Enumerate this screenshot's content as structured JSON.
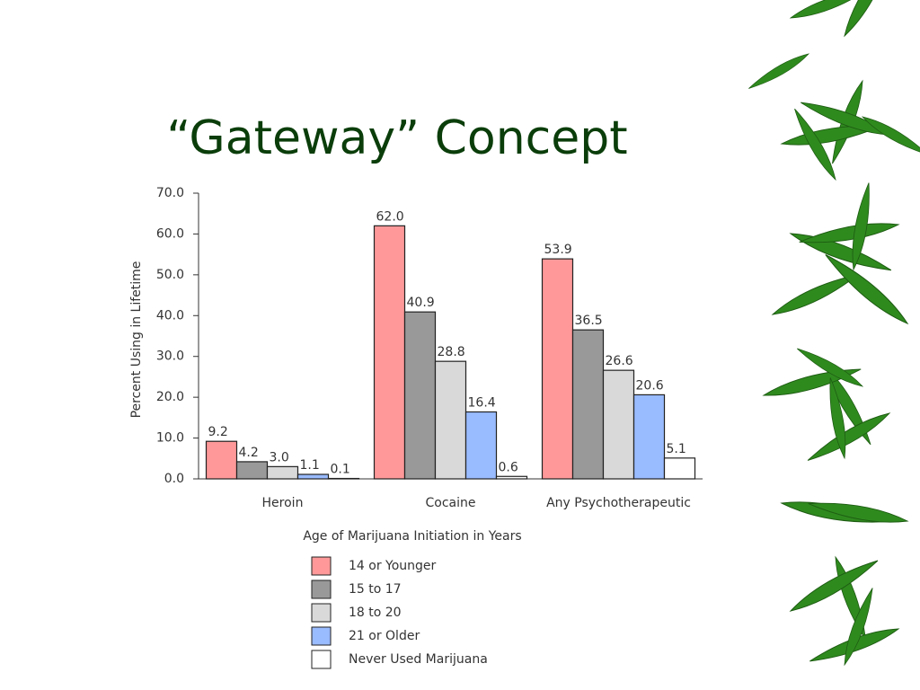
{
  "chart_data": {
    "type": "bar",
    "title": "“Gateway” Concept",
    "y_label": "Percent Using in Lifetime",
    "x_label": "Age of Marijuana Initiation in Years",
    "categories": [
      "Heroin",
      "Cocaine",
      "Any Psychotherapeutic"
    ],
    "series": [
      {
        "name": "14 or Younger",
        "color": "#ff9999",
        "values": [
          9.2,
          62,
          53.9
        ],
        "value_labels": [
          "9.2",
          "62.0",
          "53.9"
        ]
      },
      {
        "name": "15 to 17",
        "color": "#999999",
        "values": [
          4.2,
          40.9,
          36.5
        ],
        "value_labels": [
          "4.2",
          "40.9",
          "36.5"
        ]
      },
      {
        "name": "18 to 20",
        "color": "#d9d9d9",
        "values": [
          3,
          28.8,
          26.6
        ],
        "value_labels": [
          "3.0",
          "28.8",
          "26.6"
        ]
      },
      {
        "name": "21 or Older",
        "color": "#99bbff",
        "values": [
          1.1,
          16.4,
          20.6
        ],
        "value_labels": [
          "1.1",
          "16.4",
          "20.6"
        ]
      },
      {
        "name": "Never Used Marijuana",
        "color": "#ffffff",
        "values": [
          0.1,
          0.6,
          5.1
        ],
        "value_labels": [
          "0.1",
          "0.6",
          "5.1"
        ]
      }
    ],
    "ylim": [
      0,
      70
    ],
    "yticks": [
      {
        "value": 0,
        "label": "0.0"
      },
      {
        "value": 10,
        "label": "10.0"
      },
      {
        "value": 20,
        "label": "20.0"
      },
      {
        "value": 30,
        "label": "30.0"
      },
      {
        "value": 40,
        "label": "40.0"
      },
      {
        "value": 50,
        "label": "50.0"
      },
      {
        "value": 60,
        "label": "60.0"
      },
      {
        "value": 70,
        "label": "70.0"
      }
    ]
  }
}
